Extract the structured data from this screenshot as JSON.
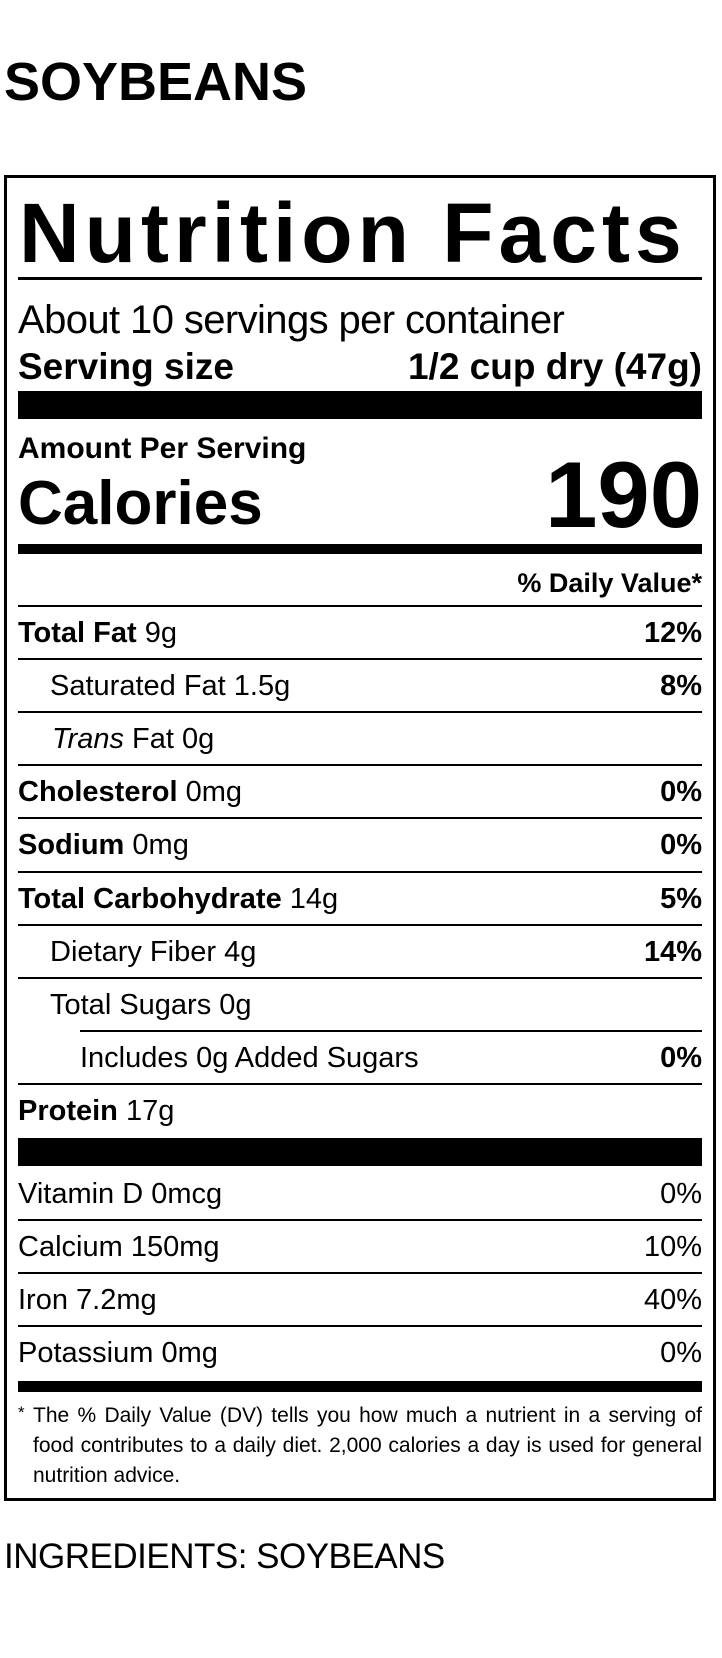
{
  "product_name": "SOYBEANS",
  "label": {
    "title": "Nutrition Facts",
    "servings_per_container": "About 10 servings per container",
    "serving_size_label": "Serving size",
    "serving_size_value": "1/2 cup dry (47g)",
    "amount_per_serving": "Amount Per Serving",
    "calories_label": "Calories",
    "calories_value": "190",
    "daily_value_header": "% Daily Value*",
    "nutrients": [
      {
        "name": "Total Fat",
        "amount": "9g",
        "dv": "12%"
      },
      {
        "name": "Saturated Fat",
        "amount": "1.5g",
        "dv": "8%"
      },
      {
        "name": "Trans",
        "name_suffix": "Fat",
        "amount": "0g",
        "dv": ""
      },
      {
        "name": "Cholesterol",
        "amount": "0mg",
        "dv": "0%"
      },
      {
        "name": "Sodium",
        "amount": "0mg",
        "dv": "0%"
      },
      {
        "name": "Total Carbohydrate",
        "amount": "14g",
        "dv": "5%"
      },
      {
        "name": "Dietary Fiber",
        "amount": "4g",
        "dv": "14%"
      },
      {
        "name": "Total Sugars",
        "amount": "0g",
        "dv": ""
      },
      {
        "name": "Includes 0g Added Sugars",
        "amount": "",
        "dv": "0%"
      },
      {
        "name": "Protein",
        "amount": "17g",
        "dv": ""
      }
    ],
    "vitamins": [
      {
        "name": "Vitamin D",
        "amount": "0mcg",
        "dv": "0%"
      },
      {
        "name": "Calcium",
        "amount": "150mg",
        "dv": "10%"
      },
      {
        "name": "Iron",
        "amount": "7.2mg",
        "dv": "40%"
      },
      {
        "name": "Potassium",
        "amount": "0mg",
        "dv": "0%"
      }
    ],
    "footnote_marker": "*",
    "footnote": "The % Daily Value (DV) tells you how much a nutrient in a serving of food contributes to a daily diet. 2,000 calories a day is used for general nutrition advice."
  },
  "ingredients": "INGREDIENTS: SOYBEANS"
}
